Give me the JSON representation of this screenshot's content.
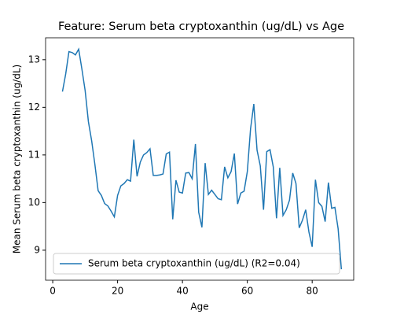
{
  "chart_data": {
    "type": "line",
    "title": "Feature: Serum beta cryptoxanthin (ug/dL) vs Age",
    "x_label": "Age",
    "y_label": "Mean Serum beta cryptoxanthin (ug/dL)",
    "x": [
      3,
      4,
      5,
      6,
      7,
      8,
      9,
      10,
      11,
      12,
      13,
      14,
      15,
      16,
      17,
      18,
      19,
      20,
      21,
      22,
      23,
      24,
      25,
      26,
      27,
      28,
      29,
      30,
      31,
      32,
      33,
      34,
      35,
      36,
      37,
      38,
      39,
      40,
      41,
      42,
      43,
      44,
      45,
      46,
      47,
      48,
      49,
      50,
      51,
      52,
      53,
      54,
      55,
      56,
      57,
      58,
      59,
      60,
      61,
      62,
      63,
      64,
      65,
      66,
      67,
      68,
      69,
      70,
      71,
      72,
      73,
      74,
      75,
      76,
      77,
      78,
      79,
      80,
      81,
      82,
      83,
      84,
      85,
      86,
      87,
      88,
      89
    ],
    "series": [
      {
        "name": "Serum beta cryptoxanthin (ug/dL) (R2=0.04)",
        "color": "#1f77b4",
        "values": [
          12.33,
          12.7,
          13.17,
          13.15,
          13.1,
          13.22,
          12.8,
          12.35,
          11.7,
          11.3,
          10.8,
          10.25,
          10.15,
          9.98,
          9.93,
          9.82,
          9.7,
          10.15,
          10.35,
          10.4,
          10.48,
          10.45,
          11.32,
          10.55,
          10.85,
          11.0,
          11.05,
          11.13,
          10.57,
          10.57,
          10.58,
          10.6,
          11.02,
          11.06,
          9.65,
          10.47,
          10.22,
          10.2,
          10.62,
          10.63,
          10.5,
          11.23,
          9.8,
          9.48,
          10.83,
          10.17,
          10.26,
          10.17,
          10.08,
          10.06,
          10.75,
          10.52,
          10.65,
          11.03,
          9.97,
          10.2,
          10.24,
          10.65,
          11.55,
          12.07,
          11.1,
          10.77,
          9.85,
          11.07,
          11.11,
          10.75,
          9.67,
          10.73,
          9.73,
          9.85,
          10.05,
          10.62,
          10.4,
          9.47,
          9.63,
          9.85,
          9.38,
          9.07,
          10.48,
          10.0,
          9.92,
          9.6,
          10.42,
          9.88,
          9.9,
          9.45,
          8.6
        ]
      }
    ],
    "xlim": [
      -2.2,
      92.8
    ],
    "xticks": [
      0,
      20,
      40,
      60,
      80
    ],
    "ylim": [
      8.37,
      13.46
    ],
    "yticks": [
      9,
      10,
      11,
      12,
      13
    ],
    "legend": "lower left"
  }
}
